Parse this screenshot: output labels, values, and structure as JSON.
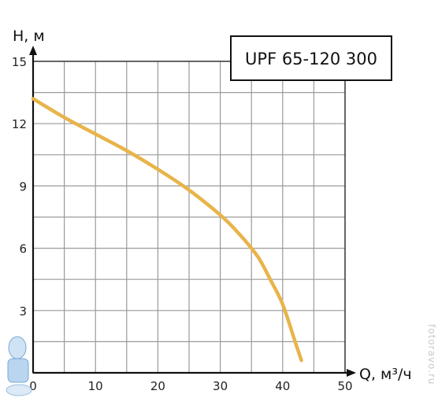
{
  "chart_data": {
    "type": "line",
    "title": "UPF 65-120 300",
    "xlabel": "Q, м³/ч",
    "ylabel": "H, м",
    "xlim": [
      0,
      50
    ],
    "ylim": [
      0,
      15
    ],
    "xticks": [
      0,
      10,
      20,
      30,
      40,
      50
    ],
    "yticks": [
      3,
      6,
      9,
      12,
      15
    ],
    "grid": true,
    "series": [
      {
        "color": "#e8b44a",
        "x": [
          0,
          5,
          10,
          15,
          20,
          25,
          30,
          33,
          36,
          38,
          40,
          42,
          43
        ],
        "y": [
          13.2,
          12.3,
          11.5,
          10.7,
          9.8,
          8.8,
          7.6,
          6.7,
          5.6,
          4.5,
          3.3,
          1.5,
          0.6
        ]
      }
    ]
  },
  "watermark": "fotoravo.ru"
}
